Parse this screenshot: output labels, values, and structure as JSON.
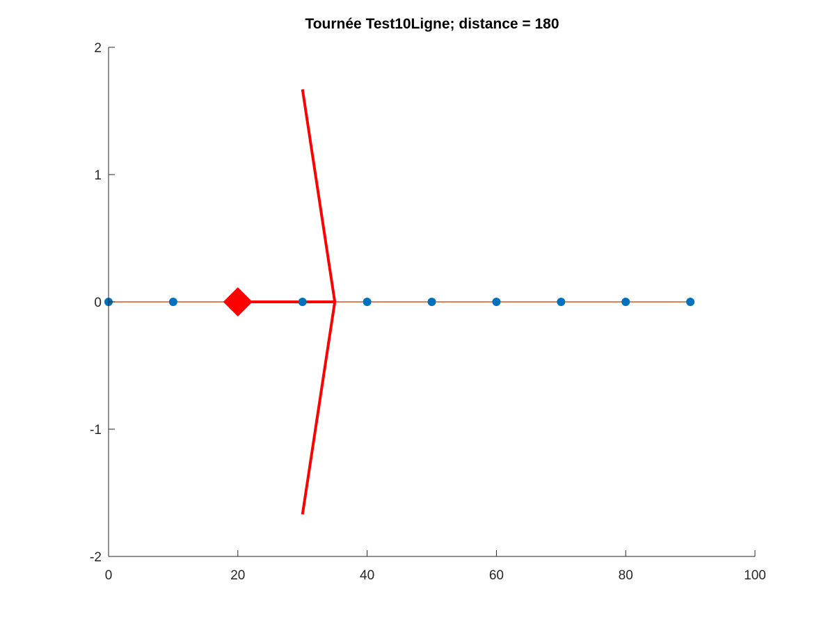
{
  "chart_data": {
    "type": "line",
    "title": "Tournée Test10Ligne; distance = 180",
    "xlabel": "",
    "ylabel": "",
    "xlim": [
      0,
      100
    ],
    "ylim": [
      -2,
      2
    ],
    "xticks": [
      0,
      20,
      40,
      60,
      80,
      100
    ],
    "yticks": [
      -2,
      -1,
      0,
      1,
      2
    ],
    "xtick_labels": [
      "0",
      "20",
      "40",
      "60",
      "80",
      "100"
    ],
    "ytick_labels": [
      "-2",
      "-1",
      "0",
      "1",
      "2"
    ],
    "grid": false,
    "legend": "none",
    "series": [
      {
        "style": "markers",
        "color": "#0072BD",
        "x": [
          0,
          10,
          20,
          30,
          40,
          50,
          60,
          70,
          80,
          90
        ],
        "y": [
          0,
          0,
          0,
          0,
          0,
          0,
          0,
          0,
          0,
          0
        ]
      },
      {
        "style": "line",
        "color": "#D95319",
        "x": [
          0,
          90
        ],
        "y": [
          0,
          0
        ]
      },
      {
        "style": "line",
        "color": "#FF0000",
        "x": [
          20,
          35
        ],
        "y": [
          0,
          0
        ]
      },
      {
        "style": "line",
        "color": "#FF0000",
        "x": [
          30,
          35,
          30
        ],
        "y": [
          1.67,
          0,
          -1.67
        ]
      }
    ],
    "annotations": [
      {
        "marker": "diamond",
        "color": "#FF0000",
        "x": 20,
        "y": 0
      }
    ]
  }
}
